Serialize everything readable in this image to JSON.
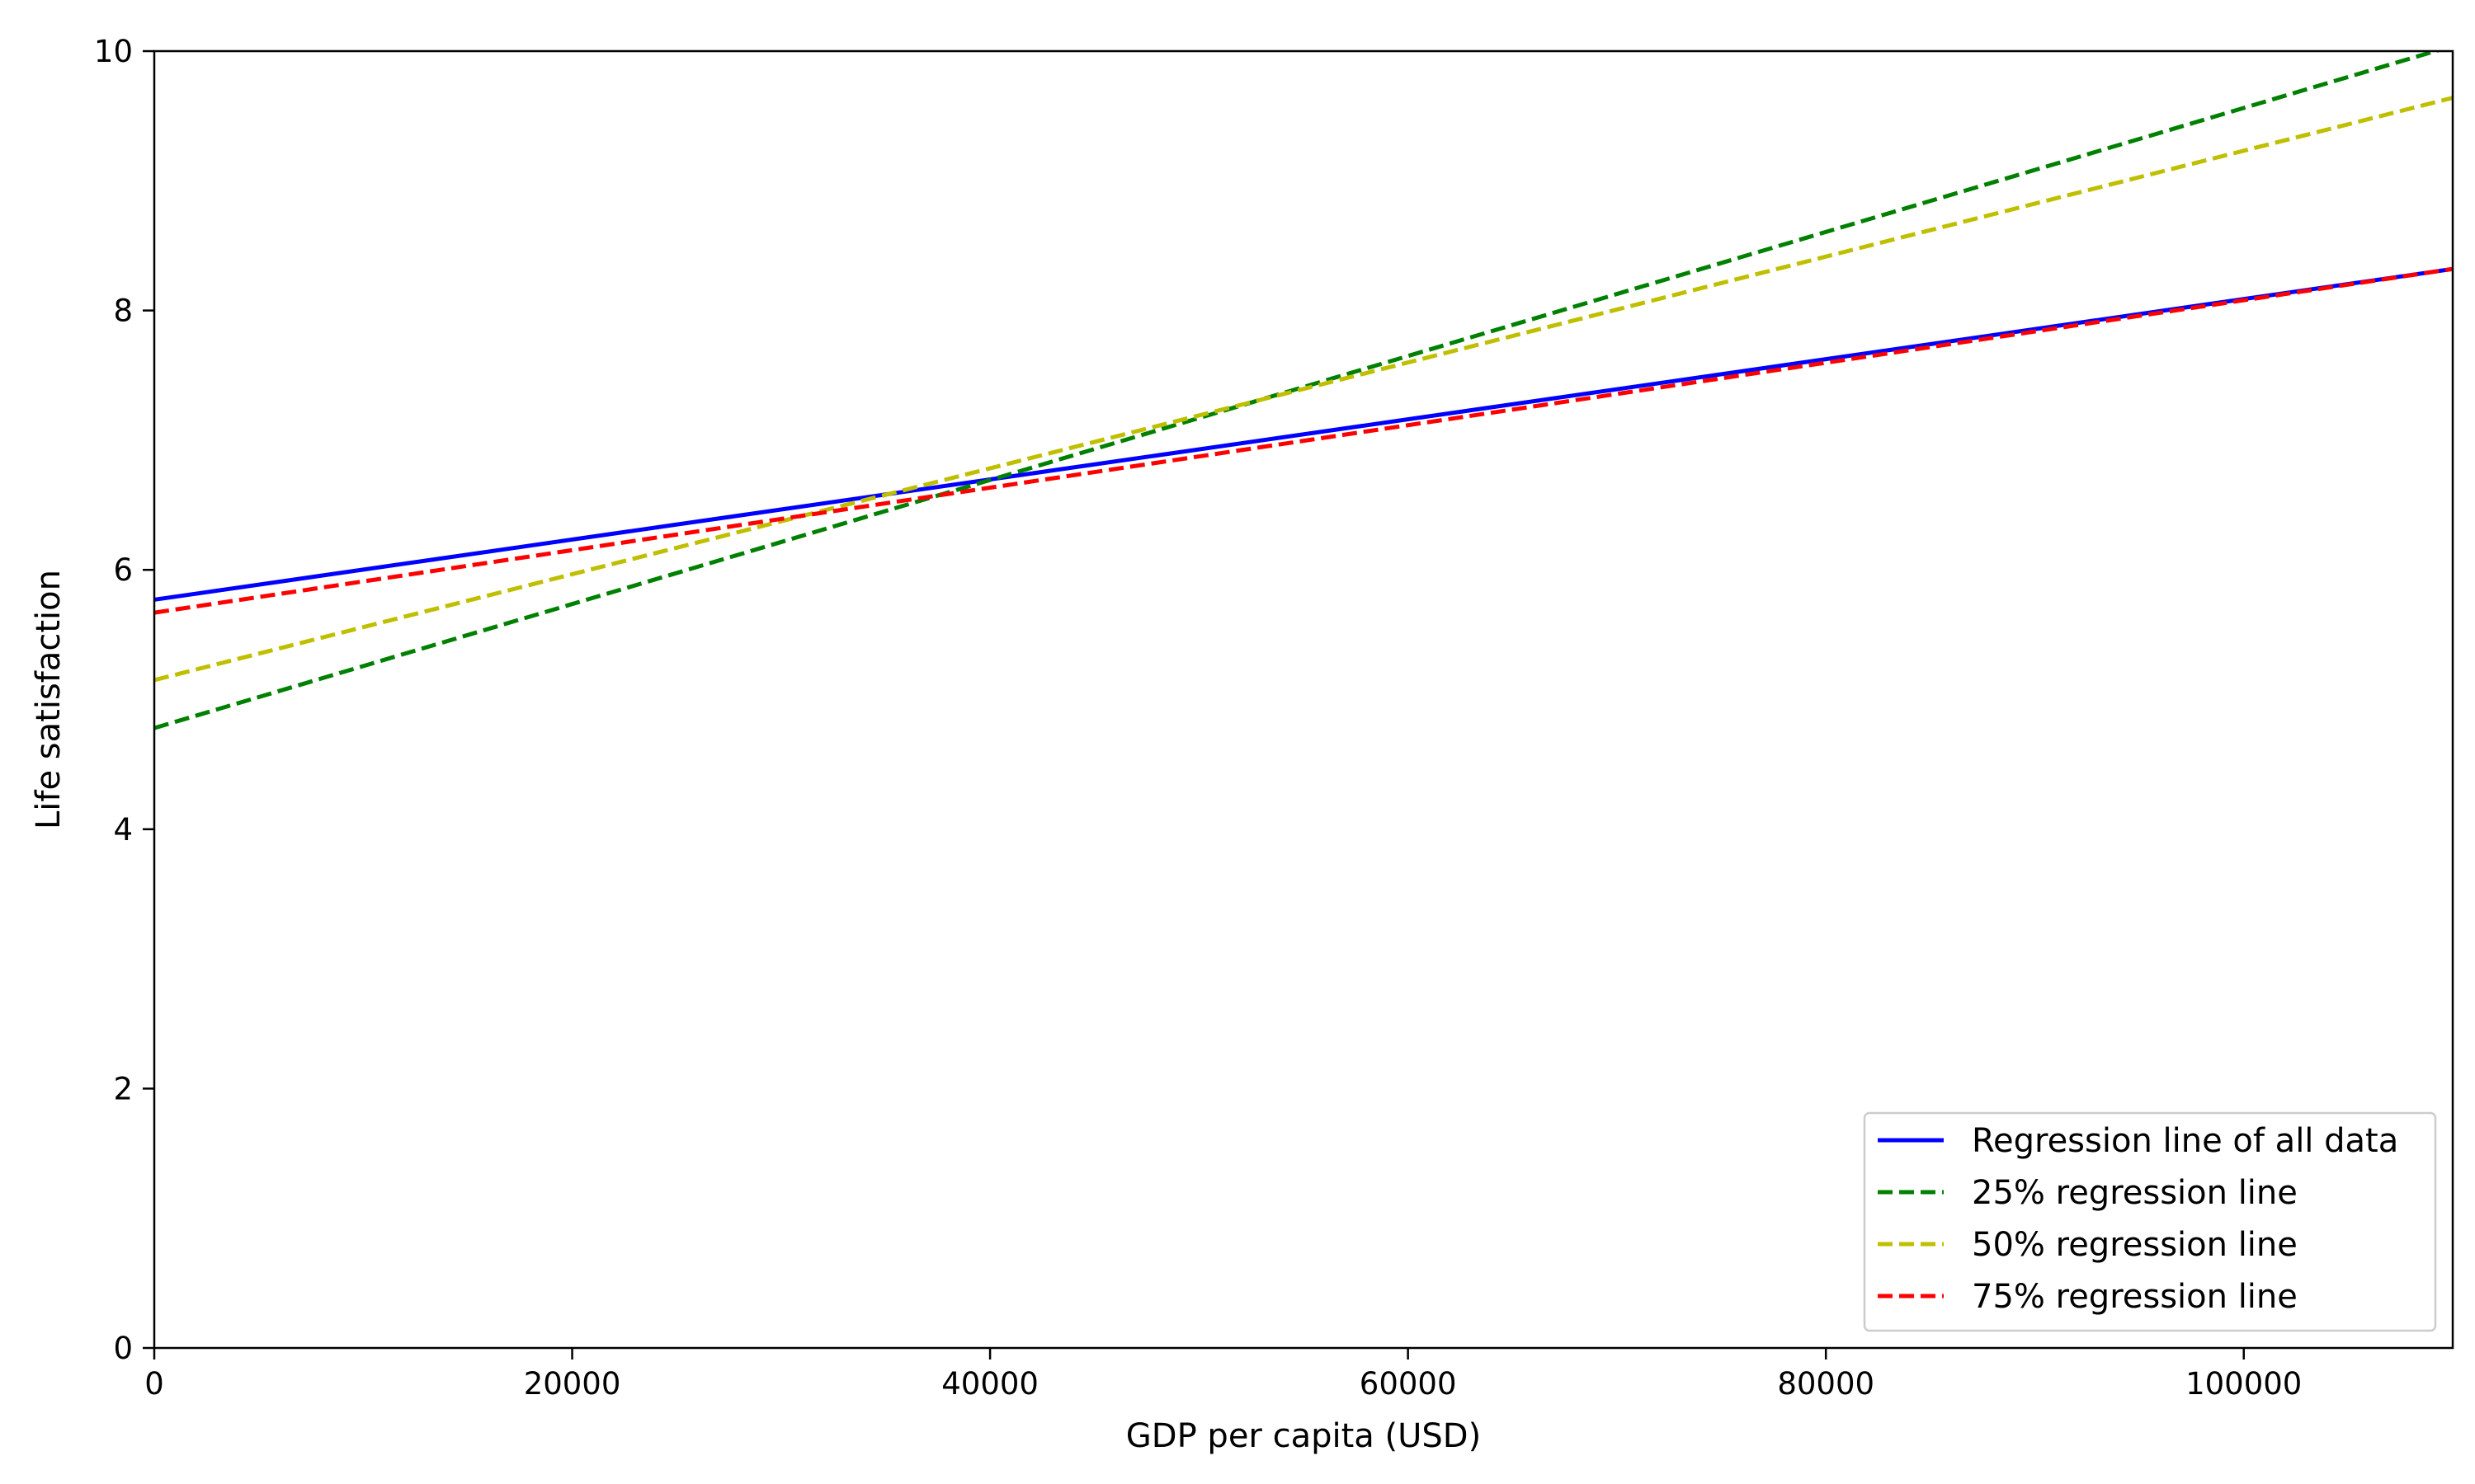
{
  "chart_data": {
    "type": "line",
    "title": "",
    "xlabel": "GDP per capita (USD)",
    "ylabel": "Life satisfaction",
    "xlim": [
      0,
      110000
    ],
    "ylim": [
      0,
      10
    ],
    "xticks": [
      0,
      20000,
      40000,
      60000,
      80000,
      100000
    ],
    "yticks": [
      0,
      2,
      4,
      6,
      8,
      10
    ],
    "xtick_labels": [
      "0",
      "20000",
      "40000",
      "60000",
      "80000",
      "100000"
    ],
    "ytick_labels": [
      "0",
      "2",
      "4",
      "6",
      "8",
      "10"
    ],
    "grid": false,
    "legend_position": "lower-right",
    "series": [
      {
        "name": "Regression line of all data",
        "color": "#0000ff",
        "style": "solid",
        "x": [
          0,
          110000
        ],
        "y": [
          5.77,
          8.32
        ]
      },
      {
        "name": "25% regression line",
        "color": "#008000",
        "style": "dashed",
        "x": [
          0,
          110000
        ],
        "y": [
          4.78,
          10.04
        ]
      },
      {
        "name": "50% regression line",
        "color": "#bfbf00",
        "style": "dashed",
        "x": [
          0,
          110000
        ],
        "y": [
          5.15,
          9.64
        ]
      },
      {
        "name": "75% regression line",
        "color": "#ff0000",
        "style": "dashed",
        "x": [
          0,
          110000
        ],
        "y": [
          5.67,
          8.32
        ]
      }
    ]
  }
}
